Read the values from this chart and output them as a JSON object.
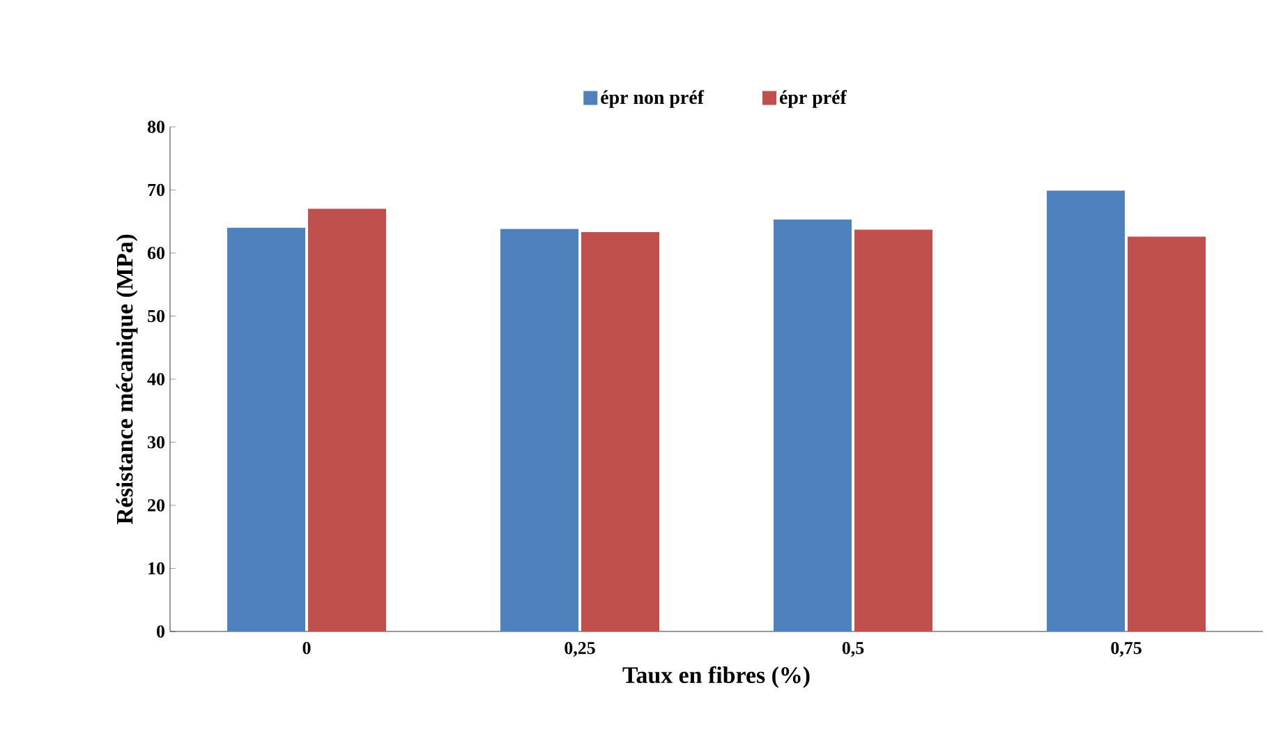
{
  "chart_data": {
    "type": "bar",
    "xlabel": "Taux en fibres (%)",
    "ylabel": "Résistance mécanique (MPa)",
    "categories": [
      "0",
      "0,25",
      "0,5",
      "0,75"
    ],
    "series": [
      {
        "name": "épr non préf",
        "color": "#4f81bd",
        "values": [
          64.0,
          63.8,
          65.3,
          69.9
        ]
      },
      {
        "name": "épr préf",
        "color": "#c0504d",
        "values": [
          67.0,
          63.3,
          63.7,
          62.6
        ]
      }
    ],
    "ylim": [
      0,
      80
    ],
    "yticks": [
      0,
      10,
      20,
      30,
      40,
      50,
      60,
      70,
      80
    ],
    "grid": false,
    "legend": "top"
  }
}
